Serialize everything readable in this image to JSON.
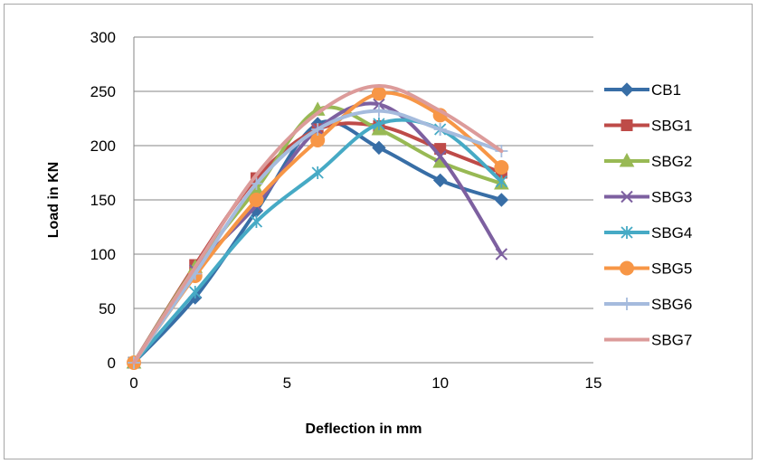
{
  "chart_data": {
    "type": "line",
    "title": "",
    "xlabel": "Deflection in mm",
    "ylabel": "Load in KN",
    "xlim": [
      0,
      15
    ],
    "ylim": [
      0,
      300
    ],
    "xticks": [
      0,
      5,
      10,
      15
    ],
    "yticks": [
      0,
      50,
      100,
      150,
      200,
      250,
      300
    ],
    "grid": "horizontal",
    "legend_position": "right",
    "smoothed": true,
    "series": [
      {
        "name": "CB1",
        "color": "#386ea6",
        "marker": "diamond",
        "x": [
          0,
          2,
          4,
          6,
          8,
          10,
          12
        ],
        "y": [
          0,
          60,
          140,
          220,
          198,
          168,
          150
        ]
      },
      {
        "name": "SBG1",
        "color": "#be4b48",
        "marker": "square",
        "x": [
          0,
          2,
          4,
          6,
          8,
          10,
          12
        ],
        "y": [
          0,
          90,
          170,
          215,
          218,
          197,
          175
        ]
      },
      {
        "name": "SBG2",
        "color": "#98b954",
        "marker": "triangle",
        "x": [
          0,
          2,
          4,
          6,
          8,
          10,
          12
        ],
        "y": [
          0,
          88,
          160,
          233,
          215,
          185,
          165
        ]
      },
      {
        "name": "SBG3",
        "color": "#7d60a0",
        "marker": "x",
        "x": [
          0,
          2,
          4,
          6,
          8,
          10,
          12
        ],
        "y": [
          0,
          85,
          145,
          215,
          238,
          190,
          100
        ]
      },
      {
        "name": "SBG4",
        "color": "#46aac5",
        "marker": "star",
        "x": [
          0,
          2,
          4,
          6,
          8,
          10,
          12
        ],
        "y": [
          0,
          65,
          130,
          175,
          220,
          215,
          167
        ]
      },
      {
        "name": "SBG5",
        "color": "#f79646",
        "marker": "circle",
        "x": [
          0,
          2,
          4,
          6,
          8,
          10,
          12
        ],
        "y": [
          0,
          80,
          150,
          205,
          248,
          228,
          180
        ]
      },
      {
        "name": "SBG6",
        "color": "#a5bbdd",
        "marker": "plus",
        "x": [
          0,
          2,
          4,
          6,
          8,
          10,
          12
        ],
        "y": [
          0,
          82,
          165,
          215,
          232,
          215,
          195
        ]
      },
      {
        "name": "SBG7",
        "color": "#dc9b9a",
        "marker": "none",
        "x": [
          0,
          2,
          4,
          6,
          8,
          10,
          12
        ],
        "y": [
          0,
          88,
          173,
          230,
          255,
          232,
          195
        ]
      }
    ]
  }
}
